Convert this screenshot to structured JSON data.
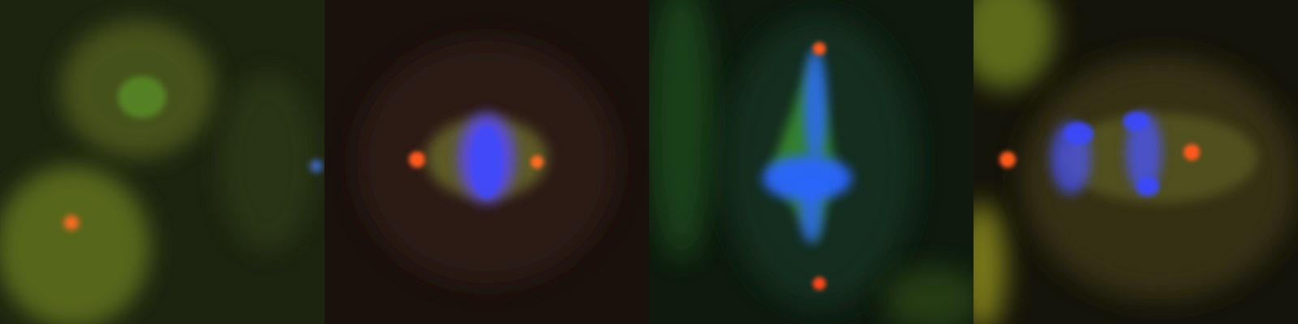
{
  "panels": [
    {
      "name": "interphase-cells",
      "base": "#1c2410"
    },
    {
      "name": "prometaphase-cell",
      "base": "#1a110d"
    },
    {
      "name": "metaphase-cell",
      "base": "#0e1a0e"
    },
    {
      "name": "anaphase-cell",
      "base": "#15140a"
    }
  ],
  "stain_colors": {
    "dna": "#3a5cff",
    "centrosome": "#ff5a1e",
    "tubulin": "#4fc43a",
    "cytoplasm": "#8a9a2a"
  }
}
